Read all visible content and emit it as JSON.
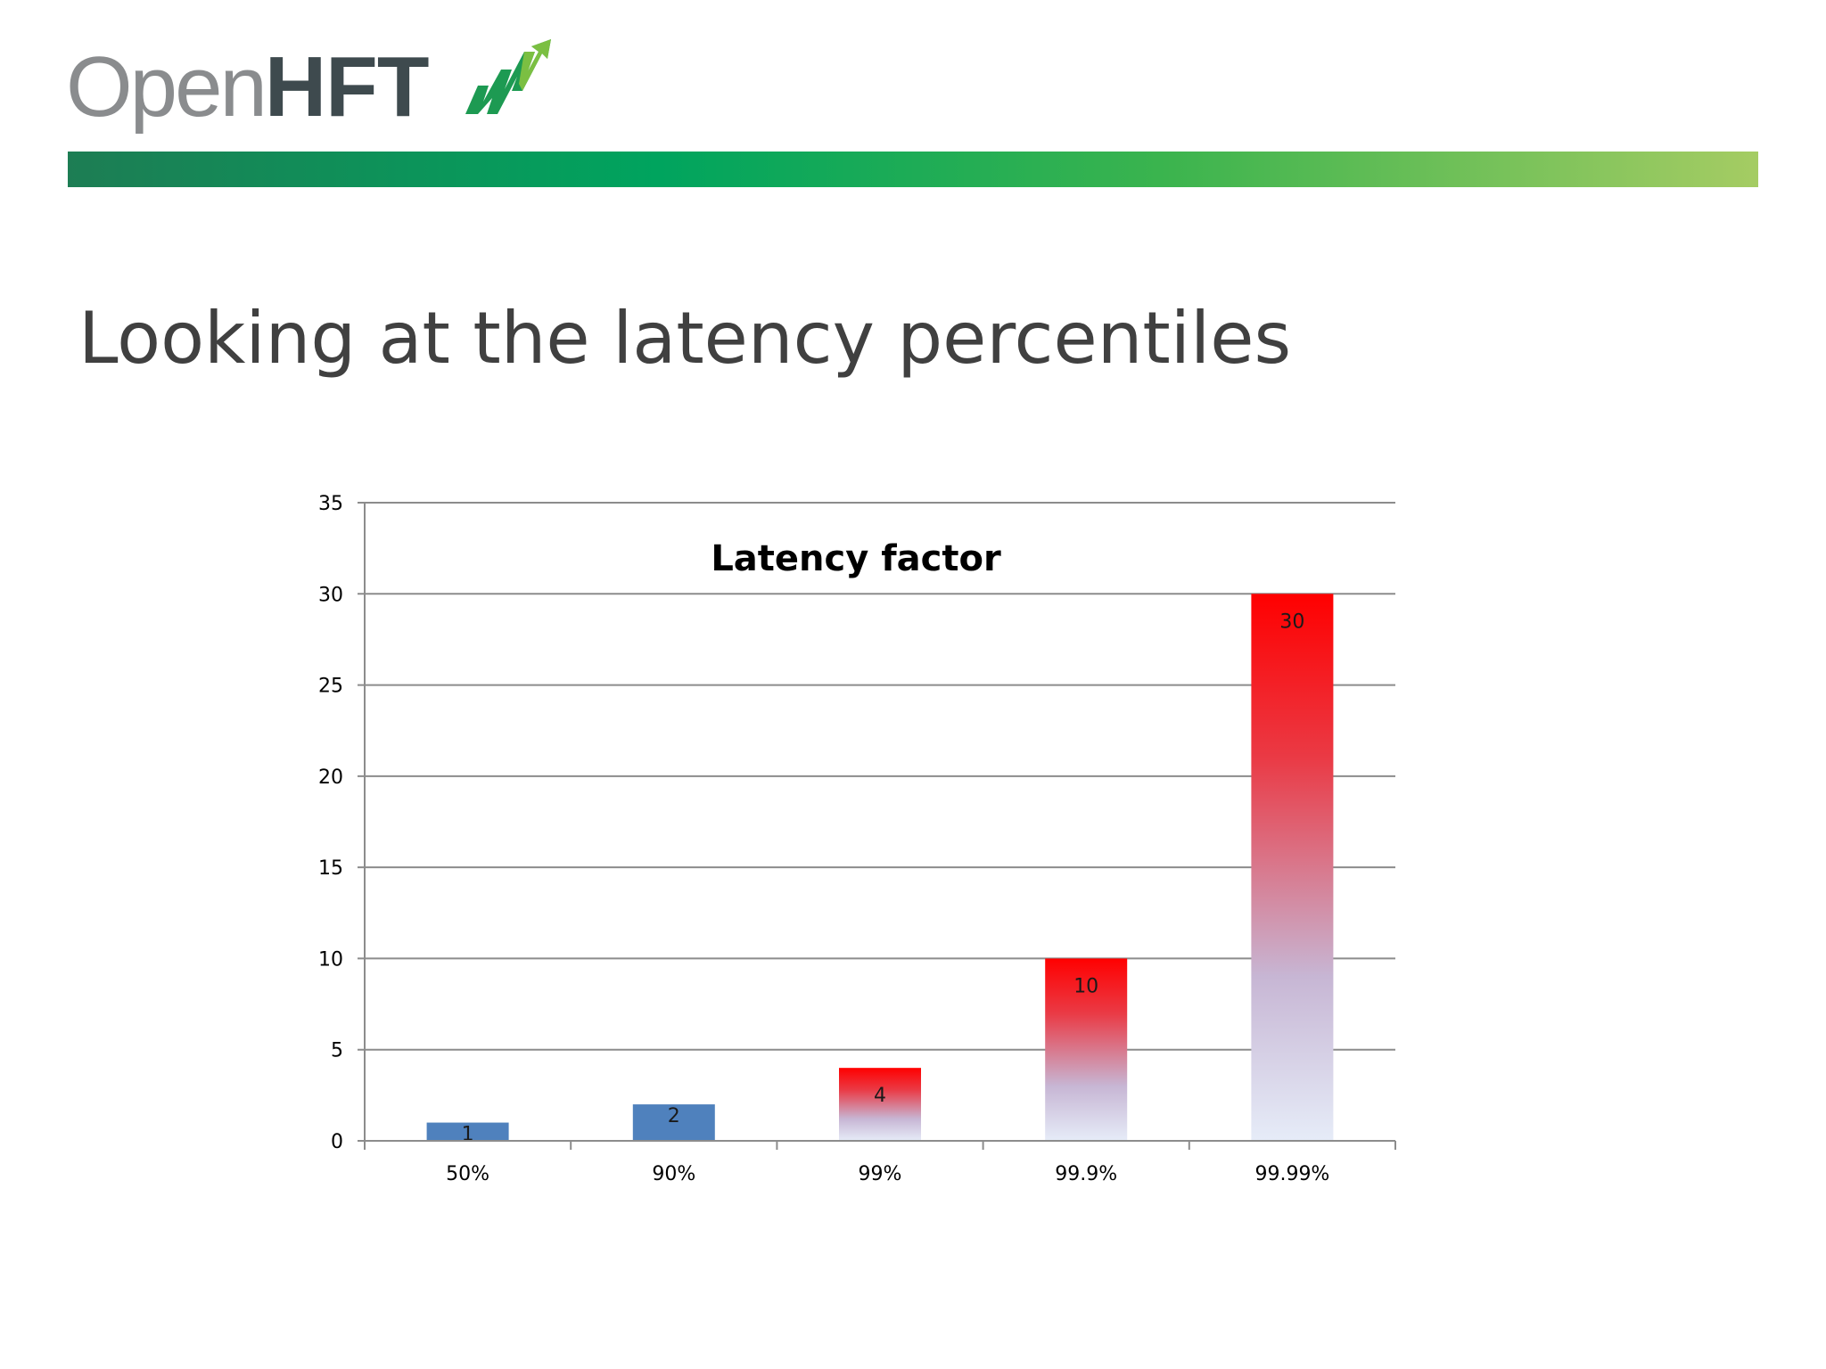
{
  "slide": {
    "logo_text_light": "Open",
    "logo_text_bold": "HFT",
    "logo_mark_icon": "rising-zigzag-arrow-icon",
    "title": "Looking at the latency percentiles"
  },
  "colors": {
    "header_bar_start": "#1d7d54",
    "header_bar_end": "#a5cc63",
    "bar_blue": "#4f81bd",
    "bar_red": "#ff0000",
    "bar_pale": "#e6ecf8"
  },
  "chart_data": {
    "type": "bar",
    "title": "Latency factor",
    "xlabel": "",
    "ylabel": "",
    "categories": [
      "50%",
      "90%",
      "99%",
      "99.9%",
      "99.99%"
    ],
    "values": [
      1,
      2,
      4,
      10,
      30
    ],
    "data_labels": [
      "1",
      "2",
      "4",
      "10",
      "30"
    ],
    "ylim": [
      0,
      35
    ],
    "yticks": [
      0,
      5,
      10,
      15,
      20,
      25,
      30,
      35
    ],
    "grid": true,
    "legend": "none",
    "bar_styles": [
      "solid-blue",
      "solid-blue",
      "gradient-red",
      "gradient-red",
      "gradient-red"
    ]
  }
}
